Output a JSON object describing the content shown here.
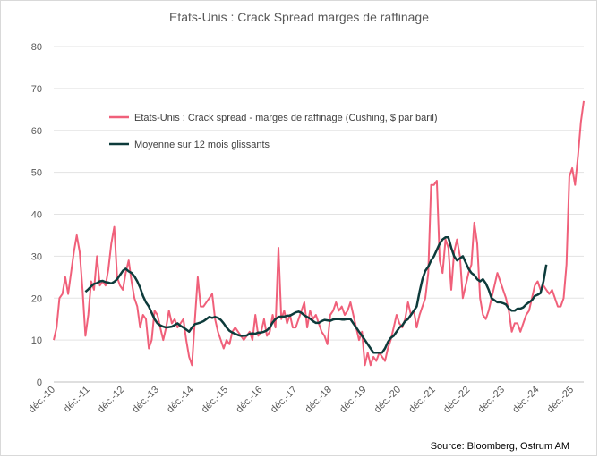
{
  "chart_data": {
    "type": "line",
    "title": "Etats-Unis : Crack Spread marges de raffinage",
    "source": "Source: Bloomberg, Ostrum AM",
    "ylim": [
      0,
      80
    ],
    "yticks": [
      0,
      10,
      20,
      30,
      40,
      50,
      60,
      70,
      80
    ],
    "x_tick_labels": [
      "déc.-10",
      "déc.-11",
      "déc.-12",
      "déc.-13",
      "déc.-14",
      "déc.-15",
      "déc.-16",
      "déc.-17",
      "déc.-18",
      "déc.-19",
      "déc.-20",
      "déc.-21",
      "déc.-22",
      "déc.-23",
      "déc.-24",
      "déc.-25"
    ],
    "x_start": "déc.-10",
    "grid": true,
    "legend": "top-left",
    "series": [
      {
        "name": "Etats-Unis : Crack spread - marges de raffinage (Cushing, $ par baril)",
        "color": "#f0607a",
        "values": [
          10,
          13,
          20,
          21,
          25,
          21,
          26,
          31,
          35,
          31,
          22,
          11,
          16,
          24,
          22,
          30,
          23,
          24,
          23,
          27,
          33,
          37,
          25,
          23,
          22,
          26,
          29,
          24,
          20,
          18,
          13,
          16,
          15,
          8,
          10,
          17,
          16,
          13,
          10,
          13,
          17,
          14,
          15,
          13,
          14,
          15,
          10,
          6,
          4,
          15,
          25,
          18,
          18,
          19,
          20,
          21,
          15,
          12,
          10,
          8,
          10,
          9,
          12,
          13,
          12,
          11,
          10,
          11,
          12,
          10,
          16,
          11,
          12,
          15,
          11,
          12,
          16,
          13,
          32,
          15,
          17,
          14,
          16,
          13,
          13,
          15,
          17,
          19,
          13,
          17,
          15,
          16,
          14,
          12,
          11,
          9,
          16,
          17,
          19,
          17,
          18,
          16,
          17,
          19,
          16,
          13,
          10,
          12,
          4,
          7,
          4,
          6,
          5,
          7,
          6,
          5,
          8,
          10,
          13,
          16,
          14,
          13,
          15,
          19,
          16,
          17,
          13,
          16,
          18,
          20,
          26,
          47,
          47,
          48,
          29,
          26,
          34,
          32,
          22,
          31,
          34,
          30,
          20,
          23,
          26,
          28,
          38,
          33,
          20,
          16,
          15,
          17,
          20,
          23,
          26,
          24,
          22,
          20,
          17,
          12,
          14,
          14,
          12,
          14,
          16,
          17,
          20,
          23,
          24,
          22,
          23,
          22,
          21,
          22,
          20,
          18,
          18,
          20,
          28,
          49,
          51,
          47,
          54,
          62,
          67
        ]
      },
      {
        "name": "Moyenne sur 12 mois glissants",
        "color": "#0d3b3b",
        "start_index": 11,
        "values": [
          21.5,
          22.1,
          22.8,
          23.4,
          23.6,
          24.0,
          24.1,
          23.8,
          23.7,
          23.5,
          23.9,
          24.5,
          25.5,
          26.5,
          27.0,
          26.4,
          26.0,
          25.2,
          24.0,
          22.5,
          20.5,
          19.0,
          18.0,
          16.5,
          15.0,
          14.0,
          13.5,
          13.2,
          13.0,
          13.1,
          13.2,
          13.6,
          14.0,
          13.4,
          13.0,
          12.5,
          12.0,
          13.0,
          13.8,
          14.0,
          14.2,
          14.5,
          15.0,
          15.5,
          15.3,
          15.5,
          15.3,
          14.8,
          14.0,
          13.0,
          12.2,
          11.8,
          11.5,
          11.2,
          11.0,
          11.0,
          11.1,
          11.5,
          11.6,
          11.5,
          11.8,
          11.8,
          12.0,
          12.3,
          13.0,
          14.2,
          15.0,
          15.5,
          15.6,
          15.6,
          15.8,
          15.8,
          16.2,
          16.6,
          16.8,
          16.5,
          15.9,
          15.5,
          15.1,
          14.5,
          14.1,
          14.1,
          14.5,
          14.8,
          14.7,
          14.6,
          14.9,
          15.0,
          15.0,
          14.9,
          14.9,
          15.0,
          15.0,
          14.0,
          13.0,
          12.0,
          11.0,
          10.0,
          9.0,
          8.0,
          7.0,
          7.0,
          7.0,
          7.0,
          8.0,
          9.5,
          10.5,
          11.0,
          12.0,
          13.0,
          13.5,
          14.5,
          15.0,
          16.0,
          17.0,
          18.0,
          21.5,
          24.5,
          26.5,
          27.5,
          29.0,
          30.0,
          31.5,
          33.0,
          34.0,
          34.5,
          34.5,
          32.0,
          30.0,
          29.0,
          29.5,
          30.0,
          28.5,
          27.0,
          26.0,
          25.5,
          24.5,
          24.0,
          24.5,
          23.5,
          22.0,
          20.0,
          19.5,
          19.0,
          19.0,
          18.8,
          18.5,
          17.5,
          17.0,
          17.0,
          17.5,
          17.5,
          17.8,
          18.5,
          19.0,
          19.5,
          20.5,
          20.8,
          21.2,
          24.0,
          28.0
        ]
      }
    ]
  }
}
